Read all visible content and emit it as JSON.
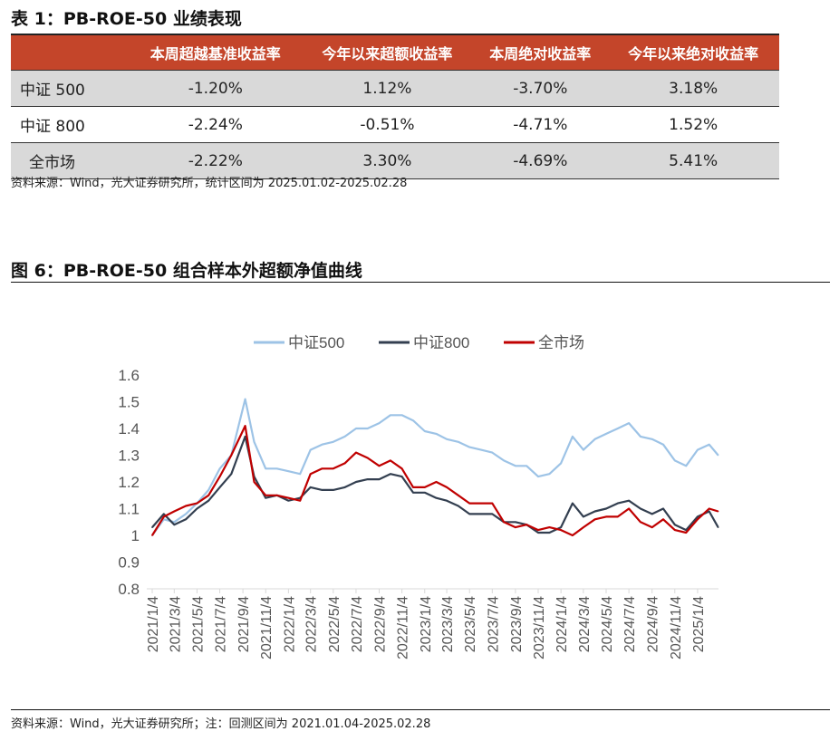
{
  "table": {
    "title": "表 1：PB-ROE-50 业绩表现",
    "headers": [
      "",
      "本周超越基准收益率",
      "今年以来超额收益率",
      "本周绝对收益率",
      "今年以来绝对收益率"
    ],
    "rows": [
      {
        "label": "中证 500",
        "values": [
          "-1.20%",
          "1.12%",
          "-3.70%",
          "3.18%"
        ]
      },
      {
        "label": "中证 800",
        "values": [
          "-2.24%",
          "-0.51%",
          "-4.71%",
          "1.52%"
        ]
      },
      {
        "label": "全市场",
        "values": [
          "-2.22%",
          "3.30%",
          "-4.69%",
          "5.41%"
        ]
      }
    ],
    "source": "资料来源：Wind，光大证券研究所，统计区间为 2025.01.02-2025.02.28",
    "header_color": "#C4452A"
  },
  "figure": {
    "title": "图 6：PB-ROE-50 组合样本外超额净值曲线",
    "source": "资料来源：Wind，光大证券研究所；注：回测区间为 2021.01.04-2025.02.28"
  },
  "chart_data": {
    "type": "line",
    "title": "",
    "xlabel": "",
    "ylabel": "",
    "ylim": [
      0.8,
      1.6
    ],
    "yticks": [
      "1.6",
      "1.5",
      "1.4",
      "1.3",
      "1.2",
      "1.1",
      "1",
      "0.9",
      "0.8"
    ],
    "xticks": [
      "2021/1/4",
      "2021/3/4",
      "2021/5/4",
      "2021/7/4",
      "2021/9/4",
      "2021/11/4",
      "2022/1/4",
      "2022/3/4",
      "2022/5/4",
      "2022/7/4",
      "2022/9/4",
      "2022/11/4",
      "2023/1/4",
      "2023/3/4",
      "2023/5/4",
      "2023/7/4",
      "2023/9/4",
      "2023/11/4",
      "2024/1/4",
      "2024/3/4",
      "2024/5/4",
      "2024/7/4",
      "2024/9/4",
      "2024/11/4",
      "2025/1/4"
    ],
    "legend_position": "top",
    "grid": false,
    "x": [
      "2021/1/4",
      "2021/2/4",
      "2021/3/4",
      "2021/4/4",
      "2021/5/4",
      "2021/6/4",
      "2021/7/4",
      "2021/8/4",
      "2021/9/10",
      "2021/10/4",
      "2021/11/4",
      "2021/12/4",
      "2022/1/4",
      "2022/2/4",
      "2022/3/4",
      "2022/4/4",
      "2022/5/4",
      "2022/6/4",
      "2022/7/4",
      "2022/8/4",
      "2022/9/4",
      "2022/10/4",
      "2022/11/4",
      "2022/12/4",
      "2023/1/4",
      "2023/2/4",
      "2023/3/4",
      "2023/4/4",
      "2023/5/4",
      "2023/6/4",
      "2023/7/4",
      "2023/8/4",
      "2023/9/4",
      "2023/10/4",
      "2023/11/4",
      "2023/12/4",
      "2024/1/4",
      "2024/2/4",
      "2024/3/4",
      "2024/4/4",
      "2024/5/4",
      "2024/6/4",
      "2024/7/4",
      "2024/8/4",
      "2024/9/4",
      "2024/10/4",
      "2024/11/4",
      "2024/12/4",
      "2025/1/4",
      "2025/2/4",
      "2025/2/28"
    ],
    "series": [
      {
        "name": "中证500",
        "color": "#9DC3E6",
        "values": [
          1.0,
          1.06,
          1.05,
          1.08,
          1.12,
          1.17,
          1.25,
          1.3,
          1.51,
          1.35,
          1.25,
          1.25,
          1.24,
          1.23,
          1.32,
          1.34,
          1.35,
          1.37,
          1.4,
          1.4,
          1.42,
          1.45,
          1.45,
          1.43,
          1.39,
          1.38,
          1.36,
          1.35,
          1.33,
          1.32,
          1.31,
          1.28,
          1.26,
          1.26,
          1.22,
          1.23,
          1.27,
          1.37,
          1.32,
          1.36,
          1.38,
          1.4,
          1.42,
          1.37,
          1.36,
          1.34,
          1.28,
          1.26,
          1.32,
          1.34,
          1.3
        ]
      },
      {
        "name": "中证800",
        "color": "#333F50",
        "values": [
          1.03,
          1.08,
          1.04,
          1.06,
          1.1,
          1.13,
          1.18,
          1.23,
          1.37,
          1.22,
          1.14,
          1.15,
          1.13,
          1.14,
          1.18,
          1.17,
          1.17,
          1.18,
          1.2,
          1.21,
          1.21,
          1.23,
          1.22,
          1.16,
          1.16,
          1.14,
          1.13,
          1.11,
          1.08,
          1.08,
          1.08,
          1.05,
          1.05,
          1.04,
          1.01,
          1.01,
          1.03,
          1.12,
          1.07,
          1.09,
          1.1,
          1.12,
          1.13,
          1.1,
          1.08,
          1.1,
          1.04,
          1.02,
          1.07,
          1.09,
          1.03
        ]
      },
      {
        "name": "全市场",
        "color": "#C00000",
        "values": [
          1.0,
          1.07,
          1.09,
          1.11,
          1.12,
          1.15,
          1.22,
          1.3,
          1.41,
          1.2,
          1.15,
          1.15,
          1.14,
          1.13,
          1.23,
          1.25,
          1.25,
          1.27,
          1.31,
          1.29,
          1.26,
          1.28,
          1.25,
          1.18,
          1.18,
          1.2,
          1.18,
          1.15,
          1.12,
          1.12,
          1.12,
          1.05,
          1.03,
          1.04,
          1.02,
          1.03,
          1.02,
          1.0,
          1.03,
          1.06,
          1.07,
          1.07,
          1.1,
          1.05,
          1.03,
          1.06,
          1.02,
          1.01,
          1.06,
          1.1,
          1.09
        ]
      }
    ]
  }
}
